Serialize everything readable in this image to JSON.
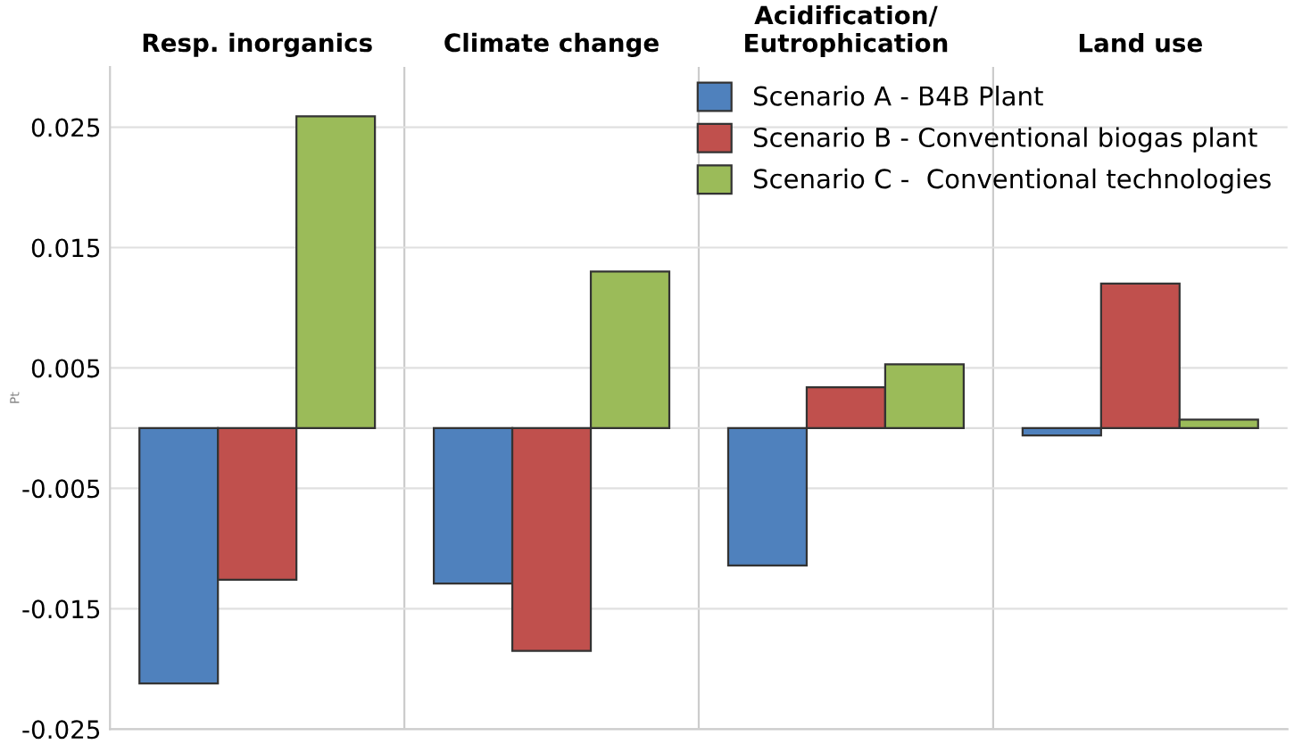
{
  "chart_data": {
    "type": "bar",
    "categories": [
      "Resp. inorganics",
      "Climate change",
      "Acidification/\nEutrophication",
      "Land use"
    ],
    "series": [
      {
        "name": "Scenario A - B4B Plant",
        "color": "#4f81bd",
        "values": [
          -0.0212,
          -0.0129,
          -0.0114,
          -0.0006
        ]
      },
      {
        "name": "Scenario B - Conventional biogas plant",
        "color": "#c0504d",
        "values": [
          -0.0126,
          -0.0185,
          0.0034,
          0.012
        ]
      },
      {
        "name": "Scenario C -  Conventional technologies",
        "color": "#9bbb59",
        "values": [
          0.0259,
          0.013,
          0.0053,
          0.0007
        ]
      }
    ],
    "ylabel": "Pt",
    "ylim": [
      -0.025,
      0.03
    ],
    "yticks": [
      -0.025,
      -0.015,
      -0.005,
      0.005,
      0.015,
      0.025
    ],
    "grid": "y",
    "legend": "top right"
  }
}
